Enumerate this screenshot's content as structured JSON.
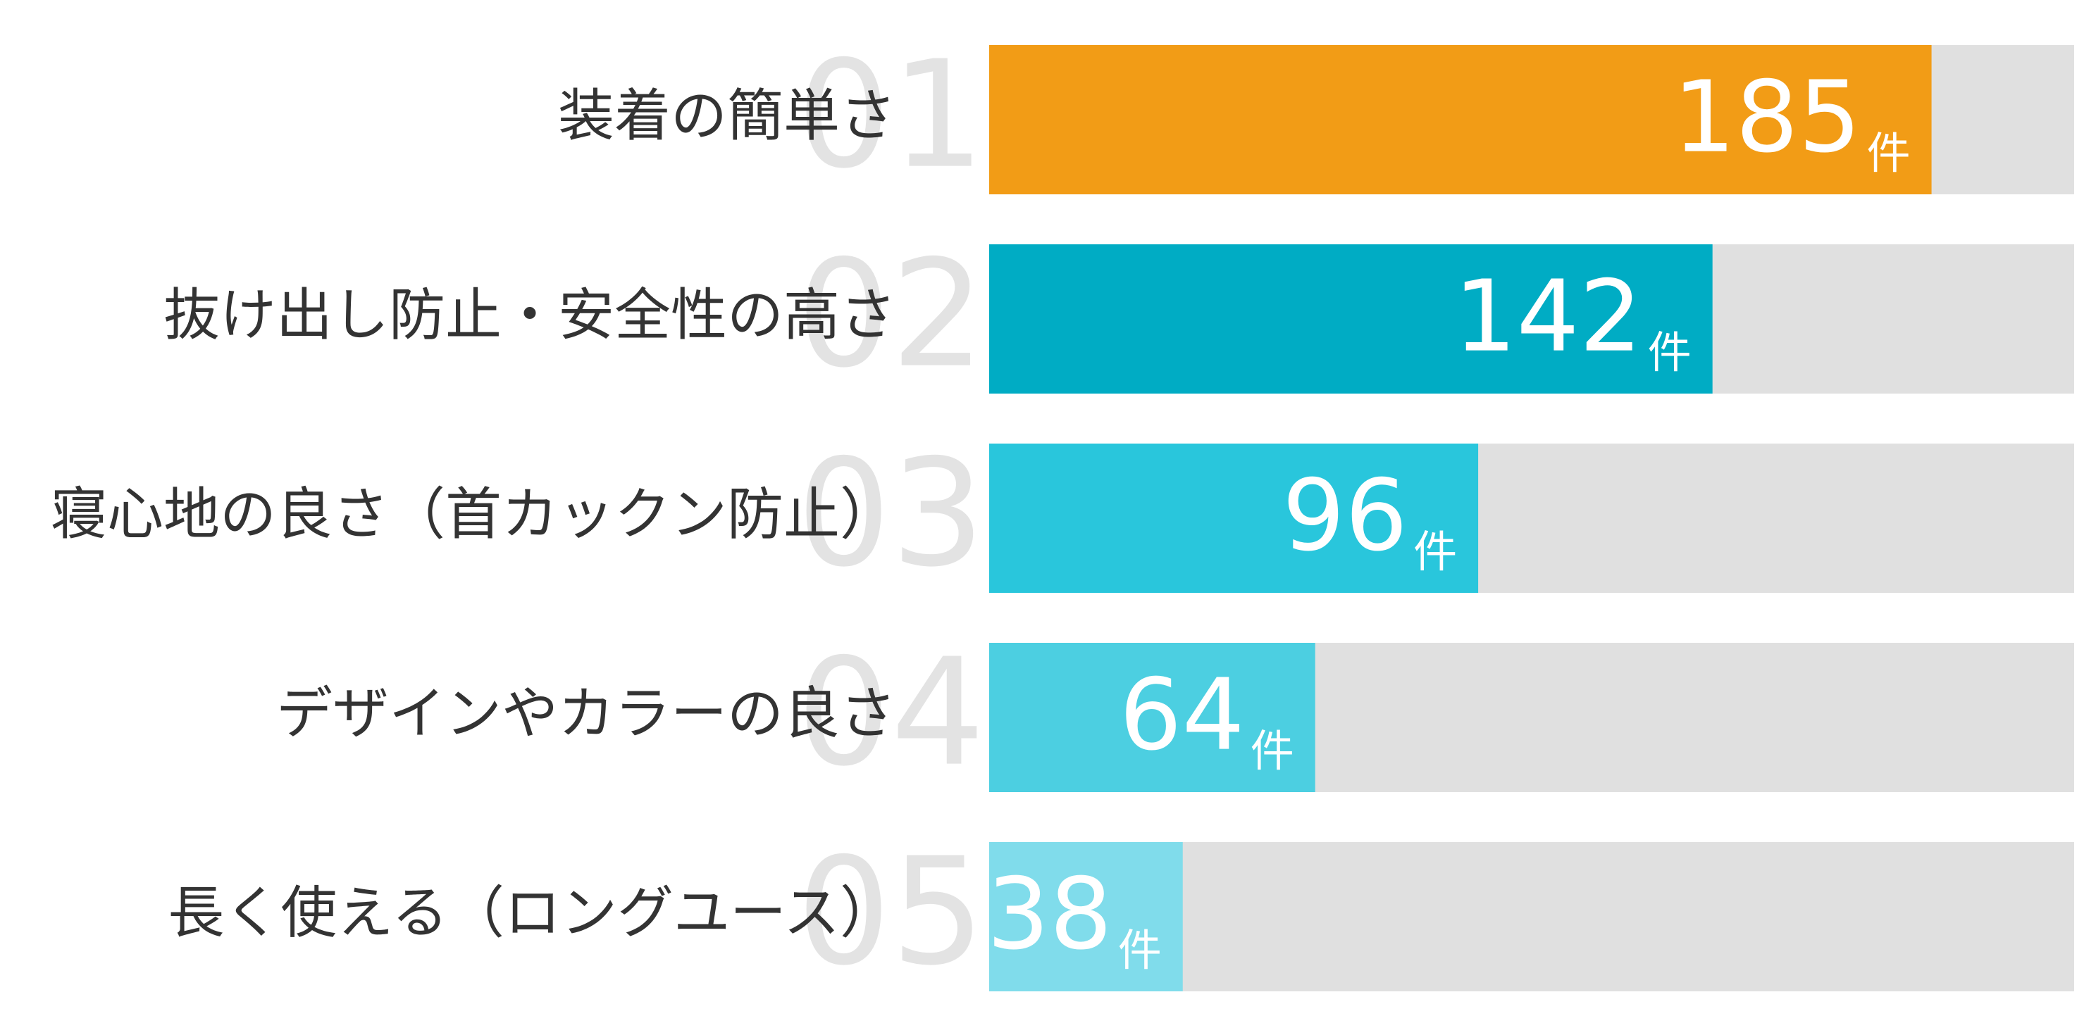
{
  "chart_data": {
    "type": "bar",
    "orientation": "horizontal",
    "categories": [
      "装着の簡単さ",
      "抜け出し防止・安全性の高さ",
      "寝心地の良さ（首カックン防止）",
      "デザインやカラーの良さ",
      "長く使える（ロングユース）"
    ],
    "ranks": [
      "01",
      "02",
      "03",
      "04",
      "05"
    ],
    "values": [
      185,
      142,
      96,
      64,
      38
    ],
    "unit": "件",
    "colors": [
      "#f29c16",
      "#00acc4",
      "#29c6dc",
      "#4ccfe1",
      "#80dceb"
    ],
    "track_color": "#e0e0e0",
    "xlim": [
      0,
      213
    ]
  }
}
